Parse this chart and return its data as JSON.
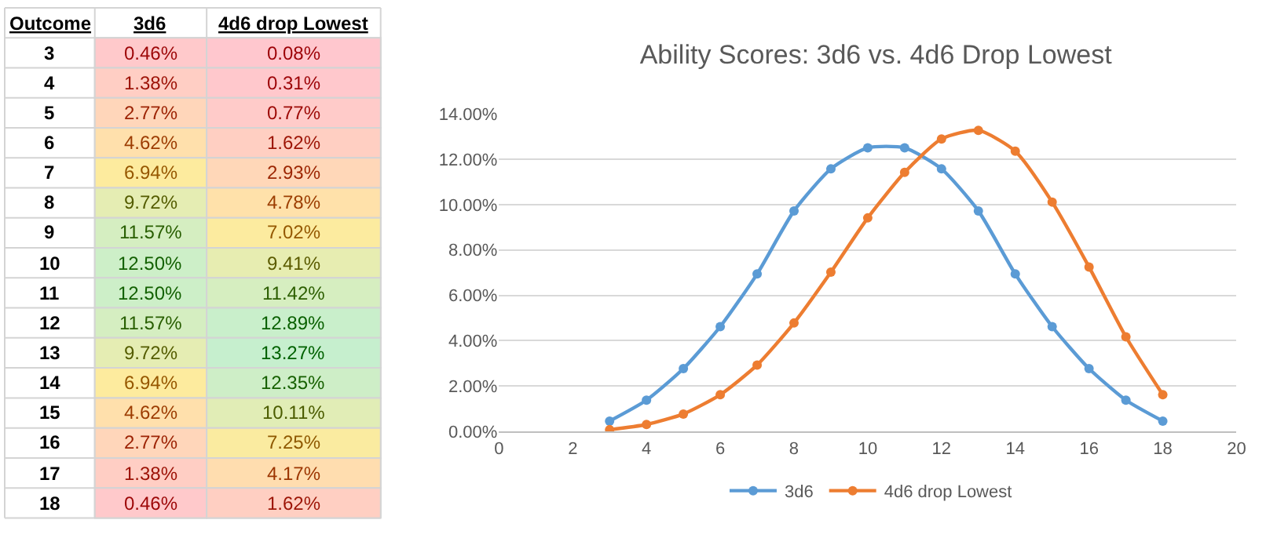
{
  "chart_data": [
    {
      "type": "heatmap",
      "annotations": [
        "Outcome"
      ],
      "categories": [
        "3d6",
        "4d6 drop Lowest"
      ],
      "y_categories": [
        "3",
        "4",
        "5",
        "6",
        "7",
        "8",
        "9",
        "10",
        "11",
        "12",
        "13",
        "14",
        "15",
        "16",
        "17",
        "18"
      ],
      "cells": [
        [
          0.46,
          0.08
        ],
        [
          1.38,
          0.31
        ],
        [
          2.77,
          0.77
        ],
        [
          4.62,
          1.62
        ],
        [
          6.94,
          2.93
        ],
        [
          9.72,
          4.78
        ],
        [
          11.57,
          7.02
        ],
        [
          12.5,
          9.41
        ],
        [
          12.5,
          11.42
        ],
        [
          11.57,
          12.89
        ],
        [
          9.72,
          13.27
        ],
        [
          6.94,
          12.35
        ],
        [
          4.62,
          10.11
        ],
        [
          2.77,
          7.25
        ],
        [
          1.38,
          4.17
        ],
        [
          0.46,
          1.62
        ]
      ],
      "cell_labels": [
        [
          "0.46%",
          "0.08%"
        ],
        [
          "1.38%",
          "0.31%"
        ],
        [
          "2.77%",
          "0.77%"
        ],
        [
          "4.62%",
          "1.62%"
        ],
        [
          "6.94%",
          "2.93%"
        ],
        [
          "9.72%",
          "4.78%"
        ],
        [
          "11.57%",
          "7.02%"
        ],
        [
          "12.50%",
          "9.41%"
        ],
        [
          "12.50%",
          "11.42%"
        ],
        [
          "11.57%",
          "12.89%"
        ],
        [
          "9.72%",
          "13.27%"
        ],
        [
          "6.94%",
          "12.35%"
        ],
        [
          "4.62%",
          "10.11%"
        ],
        [
          "2.77%",
          "7.25%"
        ],
        [
          "1.38%",
          "4.17%"
        ],
        [
          "0.46%",
          "1.62%"
        ]
      ]
    },
    {
      "type": "line",
      "title": "Ability Scores: 3d6 vs. 4d6 Drop Lowest",
      "x": [
        3,
        4,
        5,
        6,
        7,
        8,
        9,
        10,
        11,
        12,
        13,
        14,
        15,
        16,
        17,
        18
      ],
      "series": [
        {
          "name": "3d6",
          "color": "#5b9bd5",
          "values": [
            0.46,
            1.38,
            2.77,
            4.62,
            6.94,
            9.72,
            11.57,
            12.5,
            12.5,
            11.57,
            9.72,
            6.94,
            4.62,
            2.77,
            1.38,
            0.46
          ]
        },
        {
          "name": "4d6 drop Lowest",
          "color": "#ed7d31",
          "values": [
            0.08,
            0.31,
            0.77,
            1.62,
            2.93,
            4.78,
            7.02,
            9.41,
            11.42,
            12.89,
            13.27,
            12.35,
            10.11,
            7.25,
            4.17,
            1.62
          ]
        }
      ],
      "xlim": [
        0,
        20
      ],
      "xticks": [
        0,
        2,
        4,
        6,
        8,
        10,
        12,
        14,
        16,
        18,
        20
      ],
      "ylim": [
        0,
        14
      ],
      "yticks": [
        {
          "value": 0,
          "label": "0.00%"
        },
        {
          "value": 2,
          "label": "2.00%"
        },
        {
          "value": 4,
          "label": "4.00%"
        },
        {
          "value": 6,
          "label": "6.00%"
        },
        {
          "value": 8,
          "label": "8.00%"
        },
        {
          "value": 10,
          "label": "10.00%"
        },
        {
          "value": 12,
          "label": "12.00%"
        },
        {
          "value": 14,
          "label": "14.00%"
        }
      ],
      "grid": "y",
      "legend": "bottom",
      "marker": "circle",
      "line_style": "solid"
    }
  ]
}
